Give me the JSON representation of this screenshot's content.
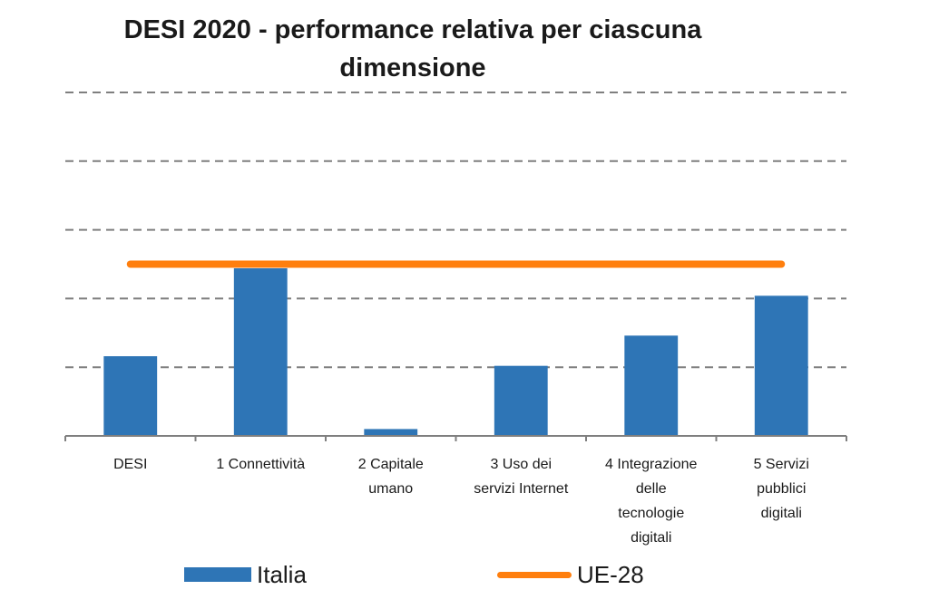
{
  "chart_data": {
    "type": "bar",
    "title": [
      "DESI 2020 - performance relativa per ciascuna",
      "dimensione"
    ],
    "categories": [
      [
        "DESI"
      ],
      [
        "1 Connettività"
      ],
      [
        "2 Capitale",
        "umano"
      ],
      [
        "3 Uso dei",
        "servizi Internet"
      ],
      [
        "4 Integrazione",
        "delle",
        "tecnologie",
        "digitali"
      ],
      [
        "5 Servizi",
        "pubblici",
        "digitali"
      ]
    ],
    "series": [
      {
        "name": "Italia",
        "type": "bar",
        "color": "#2e75b6",
        "values": [
          0.58,
          1.22,
          0.05,
          0.51,
          0.73,
          1.02
        ]
      },
      {
        "name": "UE-28",
        "type": "line",
        "color": "#ff7f0e",
        "values": [
          1.25,
          1.25,
          1.25,
          1.25,
          1.25,
          1.25
        ]
      }
    ],
    "ylim": [
      0,
      2.5
    ],
    "grid": true,
    "legend_position": "bottom"
  }
}
